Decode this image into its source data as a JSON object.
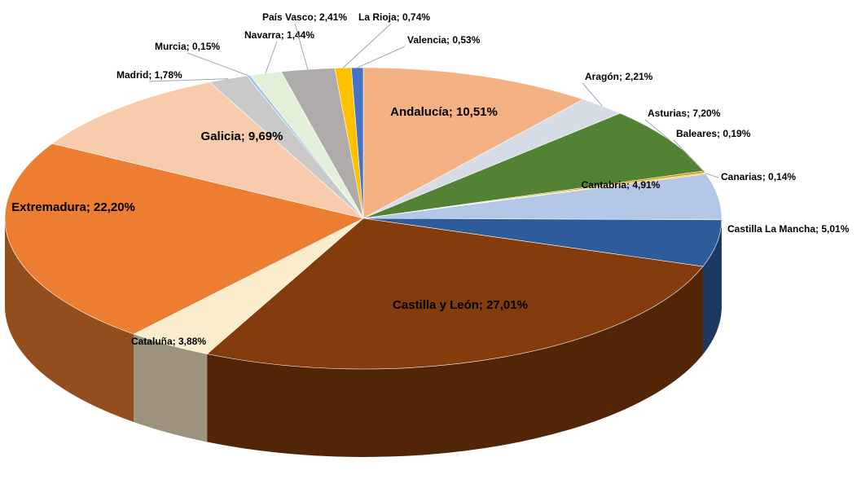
{
  "chart_data": {
    "type": "pie",
    "values": [
      10.51,
      2.21,
      7.2,
      0.19,
      0.14,
      4.91,
      5.01,
      27.01,
      3.88,
      22.2,
      9.69,
      1.78,
      0.15,
      1.44,
      2.41,
      0.74,
      0.53
    ],
    "value_labels": [
      "Andalucía; 10,51%",
      "Aragón; 2,21%",
      "Asturias; 7,20%",
      "Baleares; 0,19%",
      "Canarias; 0,14%",
      "Cantabria; 4,91%",
      "Castilla La Mancha; 5,01%",
      "Castilla y León; 27,01%",
      "Cataluña; 3,88%",
      "Extremadura; 22,20%",
      "Galicia; 9,69%",
      "Madrid; 1,78%",
      "Murcia; 0,15%",
      "Navarra; 1,44%",
      "País Vasco; 2,41%",
      "La Rioja; 0,74%",
      "Valencia; 0,53%"
    ],
    "colors": [
      "#f4b183",
      "#d6dce5",
      "#548235",
      "#bf9000",
      "#ffc000",
      "#b4c7e7",
      "#2e5c9a",
      "#843c0c",
      "#fbeccc",
      "#ed7d31",
      "#f8cbad",
      "#c9c9c9",
      "#9dc3e6",
      "#e2f0d9",
      "#afabab",
      "#ffc000",
      "#4472c4"
    ]
  }
}
